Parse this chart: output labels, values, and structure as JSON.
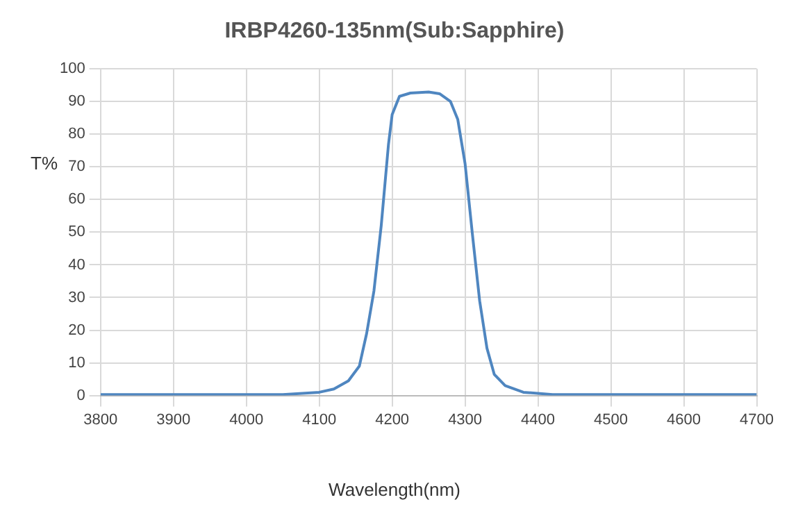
{
  "chart_data": {
    "type": "line",
    "title": "IRBP4260-135nm(Sub:Sapphire)",
    "xlabel": "Wavelength(nm)",
    "ylabel": "T%",
    "xlim": [
      3800,
      4700
    ],
    "xticks": [
      3800,
      3900,
      4000,
      4100,
      4200,
      4300,
      4400,
      4500,
      4600,
      4700
    ],
    "ylim": [
      0,
      100
    ],
    "yticks": [
      0,
      10,
      20,
      30,
      40,
      50,
      60,
      70,
      80,
      90,
      100
    ],
    "grid": true,
    "legend": false,
    "marker": "none",
    "line_style": "solid",
    "series": [
      {
        "color": "#4f86c0",
        "x": [
          3800,
          3900,
          4000,
          4050,
          4100,
          4120,
          4140,
          4155,
          4165,
          4175,
          4185,
          4195,
          4200,
          4210,
          4225,
          4250,
          4265,
          4280,
          4290,
          4300,
          4310,
          4320,
          4330,
          4340,
          4355,
          4380,
          4420,
          4500,
          4600,
          4700
        ],
        "values": [
          0.3,
          0.3,
          0.3,
          0.3,
          1,
          2,
          4.5,
          9,
          19,
          32,
          52,
          77,
          86,
          91.6,
          92.6,
          92.9,
          92.4,
          90,
          84.5,
          71,
          49.5,
          29,
          14.5,
          6.5,
          3,
          1,
          0.3,
          0.3,
          0.3,
          0.3
        ]
      }
    ]
  }
}
